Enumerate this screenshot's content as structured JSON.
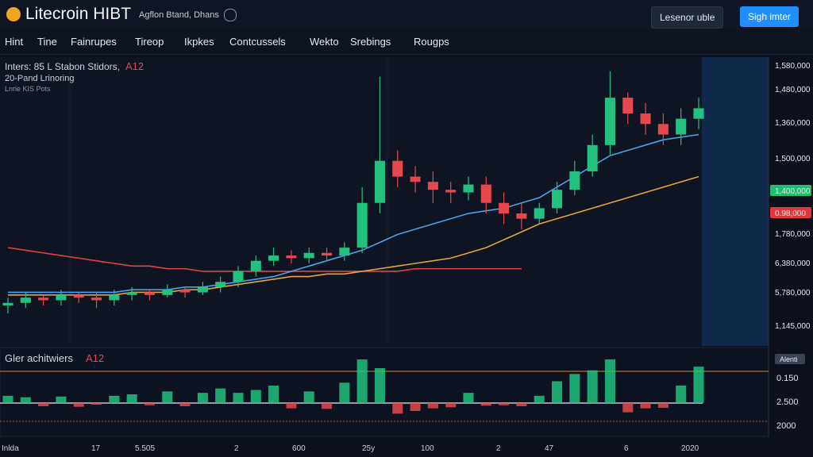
{
  "header": {
    "logo": "Litecroin HIBT",
    "subtitle": "Agflon Btand, Dhans",
    "button_secondary": "Lesenor uble",
    "button_primary": "Sigh imter"
  },
  "nav": [
    "Hint",
    "Tine",
    "Fainrupes",
    "Tireop",
    "Ikpkes",
    "Contcussels",
    "Wekto",
    "Srebings",
    "Rougps"
  ],
  "chart_data": {
    "type": "candlestick",
    "overlay": {
      "line1": "Inters: 85 L Stabon Stidors,",
      "line1_accent": "A12",
      "line2": "20-Pand Lrinoring",
      "line3": "Lnrie KIS Pots"
    },
    "price_labels": [
      "1,580,000",
      "1,480,000",
      "1,360,000",
      "1,500,000",
      "1,400,000",
      "0.98,000",
      "1,780,000",
      "6,380,000",
      "5,780,000",
      "1,145,000"
    ],
    "open": [
      11,
      12,
      14,
      13,
      15,
      14,
      13,
      15,
      16,
      15,
      17,
      16,
      18,
      20,
      24,
      28,
      30,
      29,
      31,
      30,
      33,
      50,
      66,
      60,
      58,
      55,
      54,
      57,
      50,
      46,
      44,
      48,
      55,
      62,
      72,
      90,
      84,
      80,
      76,
      82
    ],
    "high": [
      14,
      16,
      15,
      17,
      16,
      16,
      17,
      18,
      17,
      19,
      18,
      20,
      22,
      26,
      30,
      33,
      32,
      33,
      33,
      35,
      56,
      98,
      70,
      64,
      62,
      58,
      60,
      60,
      54,
      50,
      50,
      58,
      66,
      76,
      100,
      92,
      88,
      84,
      86,
      90
    ],
    "low": [
      8,
      10,
      11,
      11,
      12,
      10,
      11,
      13,
      13,
      14,
      14,
      15,
      16,
      18,
      22,
      26,
      27,
      27,
      28,
      28,
      31,
      46,
      56,
      54,
      50,
      50,
      51,
      46,
      42,
      40,
      42,
      46,
      53,
      60,
      68,
      80,
      76,
      72,
      72,
      78
    ],
    "close": [
      12,
      14,
      13,
      15,
      14,
      13,
      15,
      16,
      15,
      17,
      16,
      18,
      20,
      24,
      28,
      30,
      29,
      31,
      30,
      33,
      50,
      66,
      60,
      58,
      55,
      54,
      57,
      50,
      46,
      44,
      48,
      55,
      62,
      72,
      90,
      84,
      80,
      76,
      82,
      86
    ],
    "up_color": "#22c17f",
    "down_color": "#e5484d",
    "series": [
      {
        "color": "#e0453f",
        "values": [
          33,
          32,
          31,
          30,
          29,
          28,
          27,
          26,
          26,
          25,
          25,
          24,
          24,
          24,
          24,
          24,
          24,
          24,
          24,
          24,
          24,
          24,
          24,
          25,
          25,
          25,
          25,
          25,
          25,
          25,
          null,
          null,
          null,
          null,
          null,
          null,
          null,
          null,
          null,
          null
        ]
      },
      {
        "color": "#e5a53a",
        "values": [
          15,
          15,
          15,
          15,
          15,
          15,
          15,
          16,
          16,
          16,
          17,
          17,
          18,
          19,
          20,
          21,
          22,
          22,
          23,
          23,
          24,
          25,
          26,
          27,
          28,
          29,
          31,
          33,
          36,
          39,
          42,
          44,
          46,
          48,
          50,
          52,
          54,
          56,
          58,
          60
        ]
      },
      {
        "color": "#4aa3e8",
        "values": [
          16,
          16,
          16,
          16,
          16,
          16,
          16,
          17,
          17,
          17,
          18,
          18,
          19,
          20,
          21,
          22,
          24,
          26,
          28,
          30,
          32,
          35,
          38,
          40,
          42,
          44,
          46,
          47,
          48,
          50,
          52,
          56,
          60,
          64,
          68,
          70,
          72,
          74,
          75,
          76
        ]
      }
    ],
    "volume_panel": {
      "title": "Gler achitwiers",
      "title_accent": "A12",
      "badge": "Alenti",
      "labels": [
        "0.150",
        "2.500",
        "2000"
      ],
      "volume": [
        10,
        8,
        12,
        9,
        14,
        6,
        10,
        12,
        8,
        16,
        12,
        14,
        20,
        14,
        18,
        24,
        20,
        16,
        22,
        28,
        60,
        48,
        40,
        30,
        20,
        16,
        14,
        10,
        8,
        12,
        10,
        30,
        40,
        45,
        60,
        35,
        20,
        18,
        24,
        50
      ]
    },
    "x_labels": [
      "Inlda",
      "17",
      "5.505",
      "2",
      "600",
      "25y",
      "100",
      "2",
      "47",
      "6",
      "2020"
    ]
  }
}
